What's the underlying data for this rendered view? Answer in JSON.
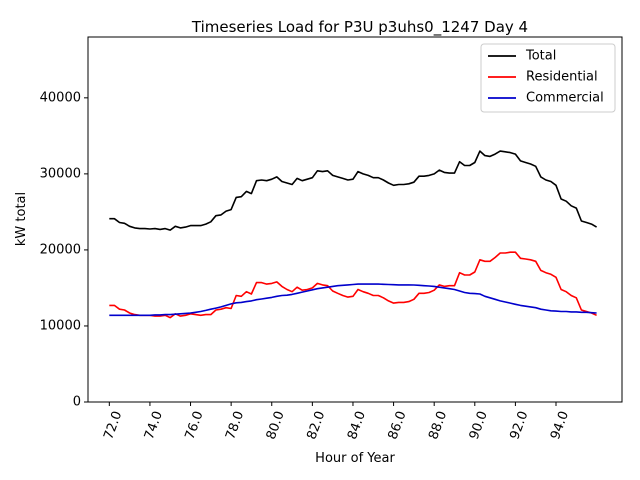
{
  "chart_data": {
    "type": "line",
    "title": "Timeseries Load for P3U p3uhs0_1247  Day 4",
    "xlabel": "Hour of Year",
    "ylabel": "kW total",
    "xlim": [
      70.95,
      97.25
    ],
    "ylim": [
      0,
      48000
    ],
    "x_ticks": [
      72,
      74,
      76,
      78,
      80,
      82,
      84,
      86,
      88,
      90,
      92,
      94
    ],
    "x_tick_labels": [
      "72.0",
      "74.0",
      "76.0",
      "78.0",
      "80.0",
      "82.0",
      "84.0",
      "86.0",
      "88.0",
      "90.0",
      "92.0",
      "94.0"
    ],
    "y_ticks": [
      0,
      10000,
      20000,
      30000,
      40000
    ],
    "y_tick_labels": [
      "0",
      "10000",
      "20000",
      "30000",
      "40000"
    ],
    "legend_position": "top-right",
    "x_start": 72.0,
    "x_step": 0.25,
    "series": [
      {
        "name": "Total",
        "color": "#000000",
        "values": [
          24100,
          24100,
          23600,
          23500,
          23100,
          22900,
          22800,
          22800,
          22750,
          22800,
          22700,
          22800,
          22600,
          23100,
          22900,
          23000,
          23200,
          23200,
          23200,
          23400,
          23700,
          24500,
          24600,
          25100,
          25300,
          26900,
          27000,
          27700,
          27400,
          29100,
          29200,
          29100,
          29300,
          29600,
          29000,
          28800,
          28600,
          29400,
          29100,
          29300,
          29500,
          30400,
          30300,
          30400,
          29800,
          29600,
          29400,
          29200,
          29300,
          30300,
          30000,
          29800,
          29500,
          29500,
          29200,
          28800,
          28500,
          28600,
          28600,
          28700,
          28900,
          29700,
          29700,
          29800,
          30000,
          30500,
          30200,
          30100,
          30100,
          31600,
          31100,
          31100,
          31500,
          33000,
          32400,
          32300,
          32600,
          33000,
          32900,
          32800,
          32600,
          31700,
          31500,
          31300,
          31000,
          29600,
          29200,
          29000,
          28500,
          26700,
          26400,
          25800,
          25500,
          23800,
          23600,
          23400,
          23000
        ]
      },
      {
        "name": "Residential",
        "color": "#ff0000",
        "values": [
          12700,
          12700,
          12200,
          12100,
          11700,
          11500,
          11400,
          11400,
          11400,
          11300,
          11300,
          11400,
          11100,
          11600,
          11300,
          11400,
          11600,
          11500,
          11400,
          11500,
          11500,
          12100,
          12200,
          12400,
          12300,
          14000,
          13900,
          14500,
          14200,
          15700,
          15700,
          15500,
          15600,
          15800,
          15200,
          14800,
          14500,
          15100,
          14700,
          14800,
          15000,
          15600,
          15400,
          15300,
          14600,
          14300,
          14000,
          13800,
          13900,
          14800,
          14500,
          14300,
          14000,
          14000,
          13700,
          13300,
          13000,
          13100,
          13100,
          13200,
          13500,
          14300,
          14300,
          14400,
          14700,
          15400,
          15200,
          15300,
          15300,
          17000,
          16700,
          16700,
          17100,
          18700,
          18500,
          18500,
          19000,
          19600,
          19600,
          19700,
          19700,
          18900,
          18800,
          18700,
          18500,
          17300,
          17000,
          16800,
          16400,
          14800,
          14500,
          14000,
          13700,
          12100,
          11900,
          11700,
          11400
        ]
      },
      {
        "name": "Commercial",
        "color": "#0000cc",
        "values": [
          11400,
          11400,
          11400,
          11400,
          11400,
          11400,
          11400,
          11400,
          11400,
          11450,
          11450,
          11500,
          11500,
          11550,
          11600,
          11650,
          11700,
          11800,
          11900,
          12050,
          12200,
          12350,
          12500,
          12700,
          12900,
          13050,
          13100,
          13200,
          13300,
          13450,
          13550,
          13650,
          13750,
          13900,
          14000,
          14050,
          14150,
          14300,
          14450,
          14600,
          14750,
          14900,
          15000,
          15100,
          15200,
          15300,
          15350,
          15400,
          15450,
          15500,
          15500,
          15500,
          15500,
          15500,
          15480,
          15450,
          15420,
          15400,
          15400,
          15400,
          15380,
          15350,
          15300,
          15250,
          15200,
          15100,
          15000,
          14900,
          14800,
          14600,
          14400,
          14300,
          14250,
          14200,
          13900,
          13700,
          13500,
          13300,
          13150,
          13000,
          12850,
          12700,
          12600,
          12500,
          12400,
          12200,
          12100,
          12000,
          11950,
          11900,
          11900,
          11850,
          11850,
          11800,
          11800,
          11750,
          11700
        ]
      }
    ]
  }
}
